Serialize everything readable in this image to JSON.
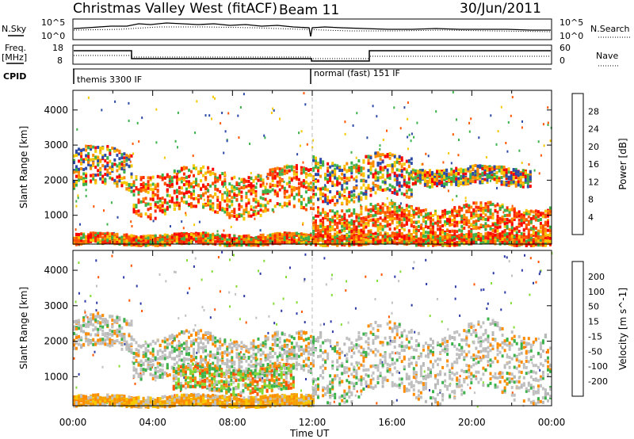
{
  "header": {
    "station": "Christmas Valley West (fitACF)",
    "beam": "Beam 11",
    "date": "30/Jun/2011"
  },
  "top_strips": {
    "nsky_label": "N.Sky",
    "nsky_ticks": [
      "10^5",
      "10^0"
    ],
    "nsearch_label": "N.Search",
    "nsearch_ticks": [
      "10^5",
      "10^0"
    ],
    "freq_label": "Freq.",
    "freq_unit": "[MHz]",
    "freq_ticks": [
      "18",
      "8"
    ],
    "nave_label": "Nave",
    "nave_ticks": [
      "60",
      "0"
    ],
    "cpid_label": "CPID",
    "cpid_modes": [
      "themis 3300 IF",
      "normal (fast) 151 IF"
    ]
  },
  "chart_data": [
    {
      "type": "heatmap",
      "title": "",
      "xlabel": "Time UT",
      "ylabel": "Slant Range [km]",
      "x_ticks": [
        "00:00",
        "04:00",
        "08:00",
        "12:00",
        "16:00",
        "20:00",
        "00:00"
      ],
      "xlim_hours": [
        0,
        24
      ],
      "y_ticks": [
        1000,
        2000,
        3000,
        4000
      ],
      "ylim": [
        180,
        4560
      ],
      "colorbar_label": "Power [dB]",
      "colorbar_ticks": [
        "28",
        "24",
        "20",
        "16",
        "12",
        "8",
        "4"
      ],
      "colorbar_colors": [
        "#ff0000",
        "#ff5500",
        "#ff8c00",
        "#f5c800",
        "#3cb24a",
        "#2d8a80",
        "#2c4aa8",
        "#0000ff"
      ],
      "features": [
        {
          "start_h": 0.0,
          "end_h": 3.0,
          "range_km": [
            1800,
            2900
          ],
          "level": "mid"
        },
        {
          "start_h": 3.0,
          "end_h": 12.0,
          "range_km": [
            1100,
            2300
          ],
          "level": "high"
        },
        {
          "start_h": 0.0,
          "end_h": 24.0,
          "range_km": [
            200,
            500
          ],
          "level": "high"
        },
        {
          "start_h": 12.0,
          "end_h": 24.0,
          "range_km": [
            500,
            1300
          ],
          "level": "high"
        },
        {
          "start_h": 12.0,
          "end_h": 17.0,
          "range_km": [
            1500,
            2700
          ],
          "level": "mid"
        },
        {
          "start_h": 17.0,
          "end_h": 23.0,
          "range_km": [
            1900,
            2400
          ],
          "level": "mid"
        }
      ]
    },
    {
      "type": "heatmap",
      "title": "",
      "xlabel": "Time UT",
      "ylabel": "Slant Range [km]",
      "x_ticks": [
        "00:00",
        "04:00",
        "08:00",
        "12:00",
        "16:00",
        "20:00",
        "00:00"
      ],
      "xlim_hours": [
        0,
        24
      ],
      "y_ticks": [
        1000,
        2000,
        3000,
        4000
      ],
      "ylim": [
        180,
        4560
      ],
      "colorbar_label": "Velocity [m s^-1]",
      "colorbar_ticks": [
        "200",
        "100",
        "50",
        "15",
        "-15",
        "-50",
        "-100",
        "-200"
      ],
      "colorbar_colors": [
        "#2c3aa8",
        "#2d8a80",
        "#3cb24a",
        "#86dc36",
        "#c0c0c0",
        "#f5a000",
        "#ff8c00",
        "#ff5500",
        "#ff0000"
      ],
      "features": [
        {
          "start_h": 0.0,
          "end_h": 3.0,
          "range_km": [
            1800,
            2700
          ],
          "level": "gray"
        },
        {
          "start_h": 3.0,
          "end_h": 12.0,
          "range_km": [
            1100,
            2200
          ],
          "level": "gray"
        },
        {
          "start_h": 5.0,
          "end_h": 11.0,
          "range_km": [
            600,
            1300
          ],
          "level": "green"
        },
        {
          "start_h": 0.0,
          "end_h": 12.0,
          "range_km": [
            200,
            500
          ],
          "level": "orange"
        },
        {
          "start_h": 12.0,
          "end_h": 24.0,
          "range_km": [
            500,
            2400
          ],
          "level": "gray"
        }
      ]
    }
  ]
}
